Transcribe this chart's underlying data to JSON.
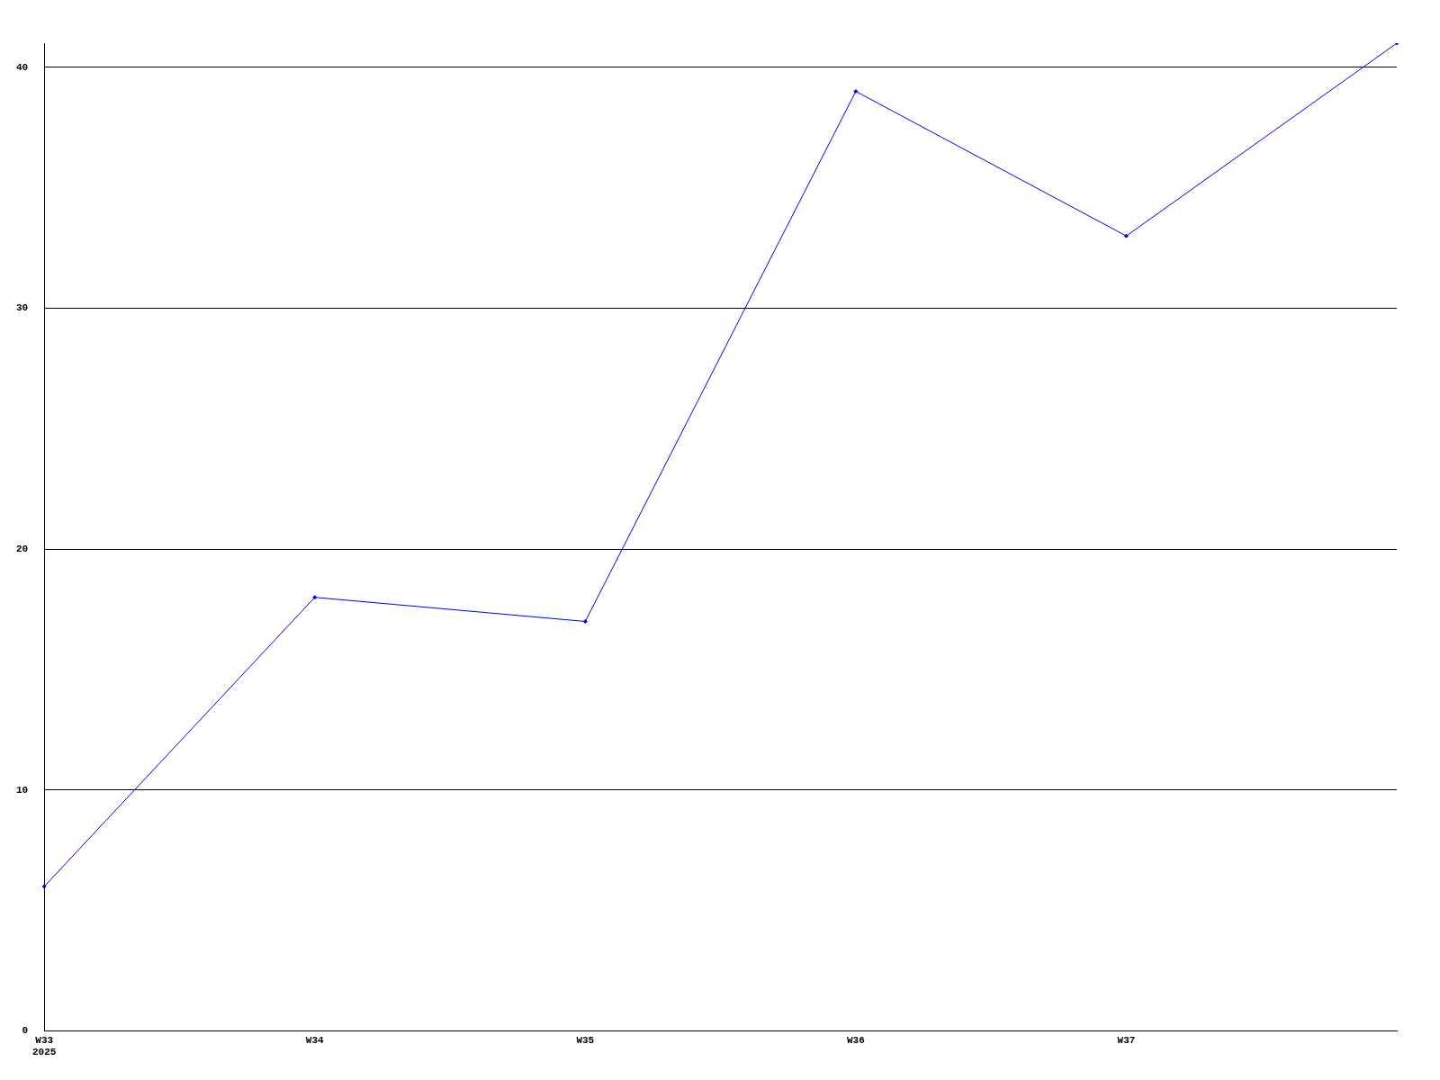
{
  "chart_data": {
    "type": "line",
    "categories": [
      "W33\n2025",
      "W34",
      "W35",
      "W36",
      "W37",
      null
    ],
    "series": [
      {
        "color": "#0000ff",
        "values": [
          6,
          18,
          17,
          39,
          33,
          41
        ]
      }
    ],
    "ylim": [
      0,
      41
    ],
    "yticks": [
      0,
      10,
      20,
      30,
      40
    ],
    "grid": "y",
    "legend": false,
    "marker": "diamond"
  }
}
